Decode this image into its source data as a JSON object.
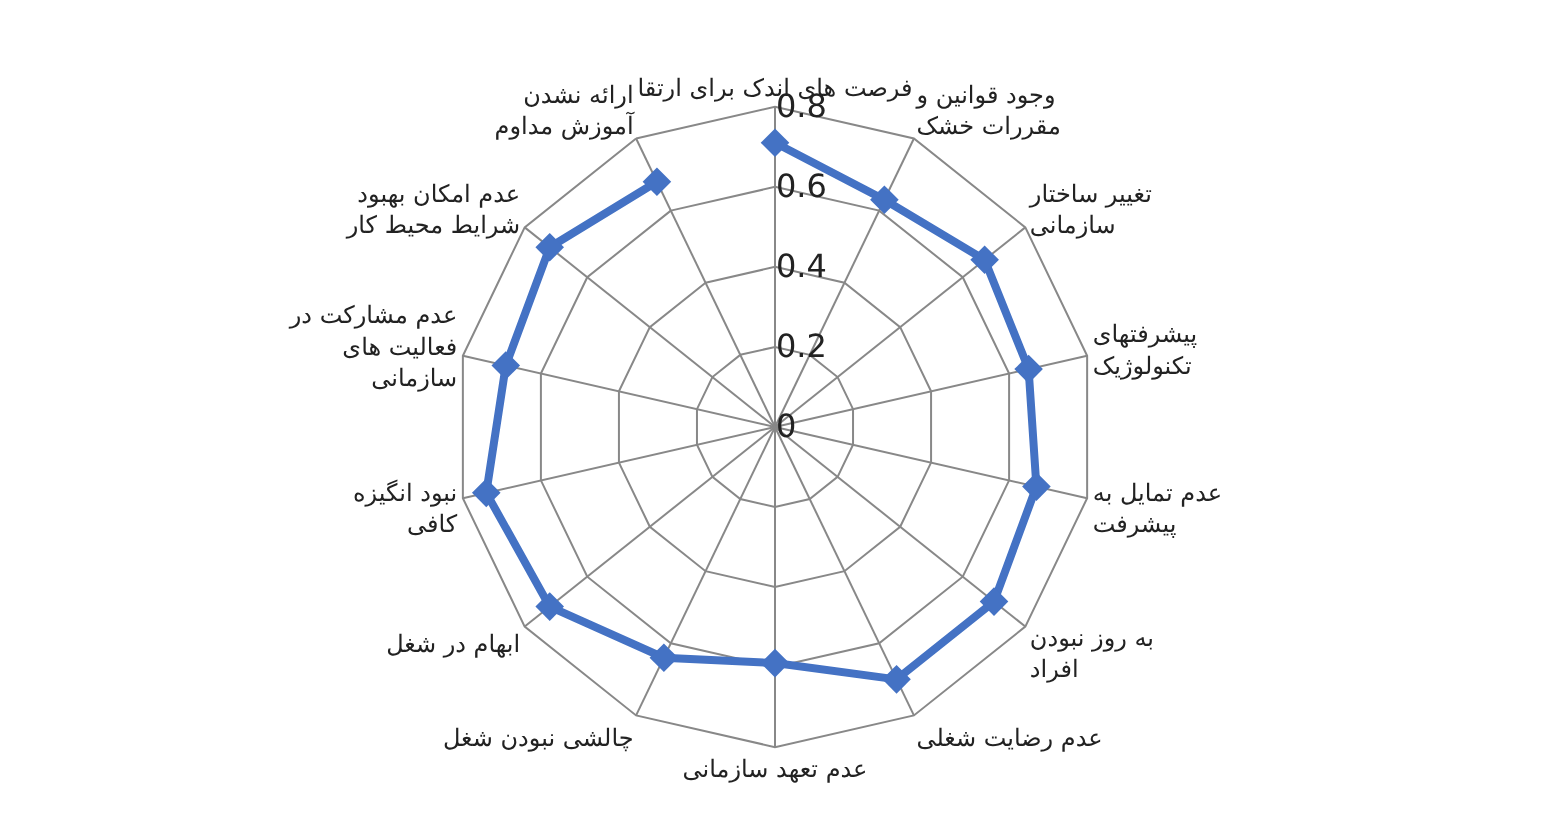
{
  "chart_data": {
    "type": "radar",
    "categories": [
      "فرصت های اندک برای ارتقا",
      "وجود قوانین و مقررات خشک",
      "تغییر ساختار سازمانی",
      "پیشرفتهای تکنولوژیک",
      "عدم تمایل به پیشرفت",
      "به روز نبودن افراد",
      "عدم رضایت شغلی",
      "عدم تعهد سازمانی",
      "چالشی نبودن شغل",
      "ابهام در شغل",
      "نبود انگیزه کافی",
      "عدم مشارکت در فعالیت های سازمانی",
      "عدم امکان بهبود شرایط محیط کار",
      "ارائه نشدن آموزش مداوم"
    ],
    "series": [
      {
        "color": "#4472c4",
        "values": [
          0.71,
          0.63,
          0.67,
          0.65,
          0.67,
          0.7,
          0.7,
          0.59,
          0.64,
          0.72,
          0.74,
          0.69,
          0.72,
          0.68
        ]
      }
    ],
    "ylim": [
      0,
      0.8
    ],
    "yticks": [
      0,
      {
        "value": 0.2,
        "label": "0.2"
      },
      {
        "value": 0.4,
        "label": "0.4"
      },
      {
        "value": 0.6,
        "label": "0.6"
      },
      {
        "value": 0.8,
        "label": "0.8"
      }
    ],
    "grid": true,
    "marker": "diamond"
  }
}
